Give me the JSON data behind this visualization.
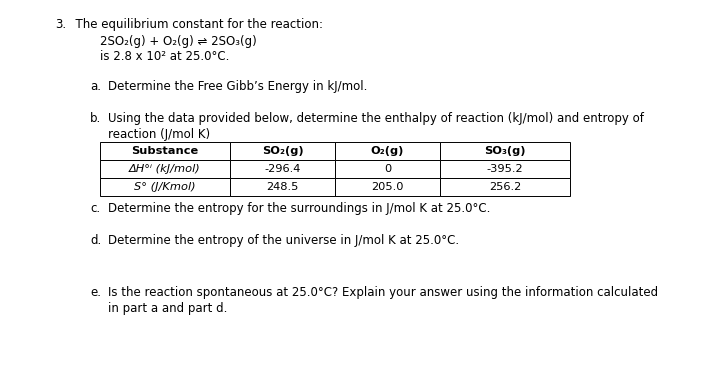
{
  "background_color": "#ffffff",
  "question_number": "3.",
  "intro_line1": "  The equilibrium constant for the reaction:",
  "reaction_line": "2SO₂(g) + O₂(g) ⇌ 2SO₃(g)",
  "intro_line2": "is 2.8 x 10² at 25.0°C.",
  "part_a_label": "a.",
  "part_a_text": "Determine the Free Gibb’s Energy in kJ/mol.",
  "part_b_label": "b.",
  "part_b_text1": "Using the data provided below, determine the enthalpy of reaction (kJ/mol) and entropy of",
  "part_b_text2": "reaction (J/mol K)",
  "table_headers": [
    "Substance",
    "SO₂(g)",
    "O₂(g)",
    "SO₃(g)"
  ],
  "table_row1_label": "ΔH°ⁱ (kJ/mol)",
  "table_row1_values": [
    "-296.4",
    "0",
    "-395.2"
  ],
  "table_row2_label": "S° (J/Kmol)",
  "table_row2_values": [
    "248.5",
    "205.0",
    "256.2"
  ],
  "part_c_label": "c.",
  "part_c_text": "Determine the entropy for the surroundings in J/mol K at 25.0°C.",
  "part_d_label": "d.",
  "part_d_text": "Determine the entropy of the universe in J/mol K at 25.0°C.",
  "part_e_label": "e.",
  "part_e_text1": "Is the reaction spontaneous at 25.0°C? Explain your answer using the information calculated",
  "part_e_text2": "in part a and part d.",
  "font_size": 8.5,
  "font_size_table": 8.2
}
